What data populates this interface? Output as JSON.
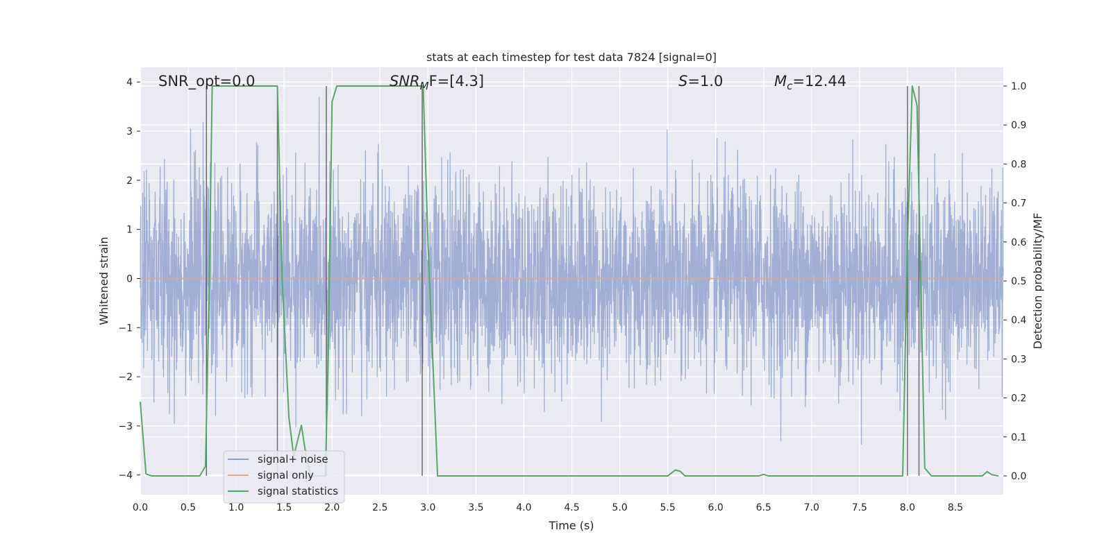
{
  "chart_data": {
    "type": "line",
    "title": "stats at each timestep for test data 7824 [signal=0]",
    "xlabel": "Time (s)",
    "ylabel": "Whitened strain",
    "ylabel_right": "Detection probability/MF",
    "xlim": [
      0.0,
      9.0
    ],
    "ylim": [
      -4.4,
      4.3
    ],
    "ylim_right": [
      -0.048,
      1.048
    ],
    "x_ticks": [
      "0.0",
      "0.5",
      "1.0",
      "1.5",
      "2.0",
      "2.5",
      "3.0",
      "3.5",
      "4.0",
      "4.5",
      "5.0",
      "5.5",
      "6.0",
      "6.5",
      "7.0",
      "7.5",
      "8.0",
      "8.5"
    ],
    "y_ticks": [
      "4",
      "3",
      "2",
      "1",
      "0",
      "−1",
      "−2",
      "−3",
      "−4"
    ],
    "y_ticks_right": [
      "1.0",
      "0.9",
      "0.8",
      "0.7",
      "0.6",
      "0.5",
      "0.4",
      "0.3",
      "0.2",
      "0.1",
      "0.0"
    ],
    "grid": true,
    "legend_position": "lower-left",
    "annotations": {
      "snr_opt": "SNR_opt=0.0",
      "snr_mf_main": "SNR",
      "snr_mf_sub": "M",
      "snr_mf_rest": "F=[4.3]",
      "s_var": "S",
      "s_rest": "=1.0",
      "mc_var": "M",
      "mc_sub": "c",
      "mc_rest": "=12.44"
    },
    "series": [
      {
        "name": "signal+ noise",
        "color": "#8da0cb",
        "kind": "noise",
        "amplitude_scale": 1.0,
        "envelope": [
          [
            0.0,
            1.25
          ],
          [
            0.1,
            1.25
          ],
          [
            0.3,
            1.1
          ],
          [
            0.6,
            1.0
          ],
          [
            1.0,
            1.0
          ],
          [
            1.5,
            1.0
          ],
          [
            2.0,
            1.0
          ],
          [
            3.0,
            1.0
          ],
          [
            4.0,
            1.0
          ],
          [
            4.8,
            1.0
          ],
          [
            5.0,
            0.85
          ],
          [
            5.2,
            1.0
          ],
          [
            6.0,
            1.0
          ],
          [
            8.0,
            1.0
          ],
          [
            8.9,
            0.9
          ],
          [
            9.0,
            1.1
          ]
        ]
      },
      {
        "name": "signal only",
        "color": "#e5a58a",
        "x": [
          0.0,
          9.0
        ],
        "y": [
          0.0,
          0.0
        ]
      },
      {
        "name": "signal statistics",
        "color": "#55a868",
        "axis": "right",
        "x": [
          0.0,
          0.06,
          0.12,
          0.62,
          0.68,
          0.72,
          0.75,
          1.43,
          1.48,
          1.55,
          1.6,
          1.68,
          1.73,
          1.78,
          1.93,
          1.96,
          2.0,
          2.05,
          2.1,
          2.85,
          2.95,
          3.0,
          3.1,
          3.5,
          4.0,
          5.0,
          5.5,
          5.58,
          5.63,
          5.68,
          6.0,
          6.45,
          6.5,
          6.55,
          7.0,
          7.5,
          7.95,
          8.0,
          8.05,
          8.1,
          8.13,
          8.18,
          8.25,
          8.5,
          8.78,
          8.83,
          8.88,
          8.95
        ],
        "y": [
          0.19,
          0.005,
          0.0,
          0.0,
          0.025,
          0.5,
          1.0,
          1.0,
          0.5,
          0.15,
          0.05,
          0.13,
          0.05,
          0.0,
          0.0,
          0.3,
          0.96,
          1.0,
          1.0,
          1.0,
          1.0,
          0.6,
          0.0,
          0.0,
          0.0,
          0.0,
          0.0,
          0.015,
          0.012,
          0.0,
          0.0,
          0.0,
          0.004,
          0.0,
          0.0,
          0.0,
          0.0,
          0.6,
          1.0,
          0.95,
          0.6,
          0.02,
          0.0,
          0.0,
          0.0,
          0.011,
          0.003,
          0.0
        ]
      }
    ],
    "vlines": [
      0.69,
      1.43,
      1.94,
      2.94,
      8.0,
      8.12
    ]
  }
}
